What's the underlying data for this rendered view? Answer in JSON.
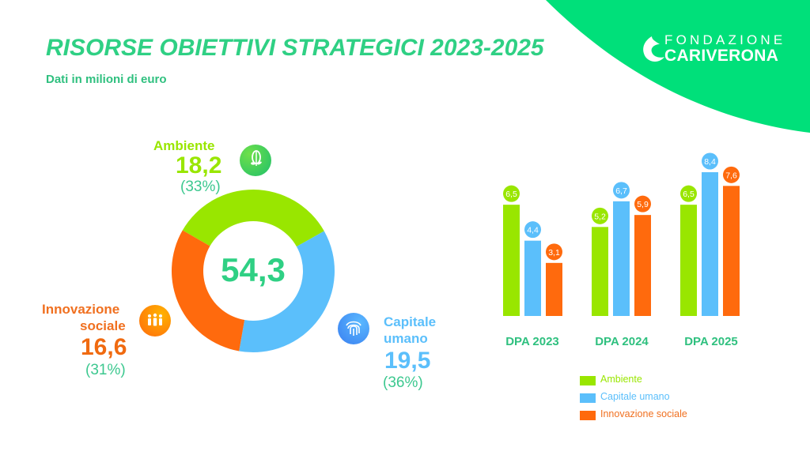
{
  "header": {
    "title": "RISORSE OBIETTIVI STRATEGICI 2023-2025",
    "subtitle": "Dati in milioni di euro"
  },
  "logo": {
    "line1": "FONDAZIONE",
    "line2": "CARIVERONA",
    "icon": "drop-logo-icon"
  },
  "colors": {
    "brand_green": "#00e07a",
    "title_green": "#2fd084",
    "ambiente": "#99e600",
    "capitale_umano": "#5bbffb",
    "innovazione_sociale": "#ff6a0d",
    "percent_text": "#3cc88f"
  },
  "chart_data": [
    {
      "type": "pie",
      "variant": "donut",
      "title": "",
      "total_label": "54,3",
      "total": 54.3,
      "slices": [
        {
          "name": "Ambiente",
          "value": 18.2,
          "value_label": "18,2",
          "percent_label": "(33%)",
          "icon": "leaf-icon",
          "color": "#99e600"
        },
        {
          "name": "Capitale umano",
          "name_lines": [
            "Capitale",
            "umano"
          ],
          "value": 19.5,
          "value_label": "19,5",
          "percent_label": "(36%)",
          "icon": "fingerprint-icon",
          "color": "#5bbffb"
        },
        {
          "name": "Innovazione sociale",
          "name_lines": [
            "Innovazione",
            "sociale"
          ],
          "value": 16.6,
          "value_label": "16,6",
          "percent_label": "(31%)",
          "icon": "people-icon",
          "color": "#ff6a0d"
        }
      ]
    },
    {
      "type": "bar",
      "title": "",
      "xlabel": "",
      "ylabel": "",
      "grid": false,
      "legend_position": "bottom",
      "categories": [
        "DPA 2023",
        "DPA 2024",
        "DPA 2025"
      ],
      "ylim": [
        0,
        9
      ],
      "series": [
        {
          "name": "Ambiente",
          "color": "#99e600",
          "values": [
            6.5,
            5.2,
            6.5
          ],
          "labels": [
            "6,5",
            "5,2",
            "6,5"
          ]
        },
        {
          "name": "Capitale umano",
          "color": "#5bbffb",
          "values": [
            4.4,
            6.7,
            8.4
          ],
          "labels": [
            "4,4",
            "6,7",
            "8,4"
          ]
        },
        {
          "name": "Innovazione sociale",
          "color": "#ff6a0d",
          "values": [
            3.1,
            5.9,
            7.6
          ],
          "labels": [
            "3,1",
            "5,9",
            "7,6"
          ]
        }
      ]
    }
  ]
}
